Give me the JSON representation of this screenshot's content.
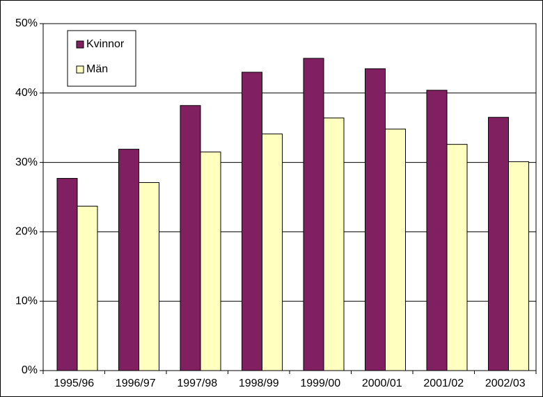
{
  "chart_data": {
    "type": "bar",
    "categories": [
      "1995/96",
      "1996/97",
      "1997/98",
      "1998/99",
      "1999/00",
      "2000/01",
      "2001/02",
      "2002/03"
    ],
    "series": [
      {
        "name": "Kvinnor",
        "color": "#802060",
        "values": [
          27.7,
          31.9,
          38.2,
          43.0,
          45.0,
          43.5,
          40.4,
          36.5
        ]
      },
      {
        "name": "Män",
        "color": "#ffffc0",
        "values": [
          23.7,
          27.1,
          31.5,
          34.1,
          36.4,
          34.8,
          32.6,
          30.1
        ]
      }
    ],
    "ylim": [
      0,
      50
    ],
    "yticks": [
      {
        "value": 0,
        "label": "0%"
      },
      {
        "value": 10,
        "label": "10%"
      },
      {
        "value": 20,
        "label": "20%"
      },
      {
        "value": 30,
        "label": "30%"
      },
      {
        "value": 40,
        "label": "40%"
      },
      {
        "value": 50,
        "label": "50%"
      }
    ],
    "grid": true,
    "legend": "upper left"
  }
}
